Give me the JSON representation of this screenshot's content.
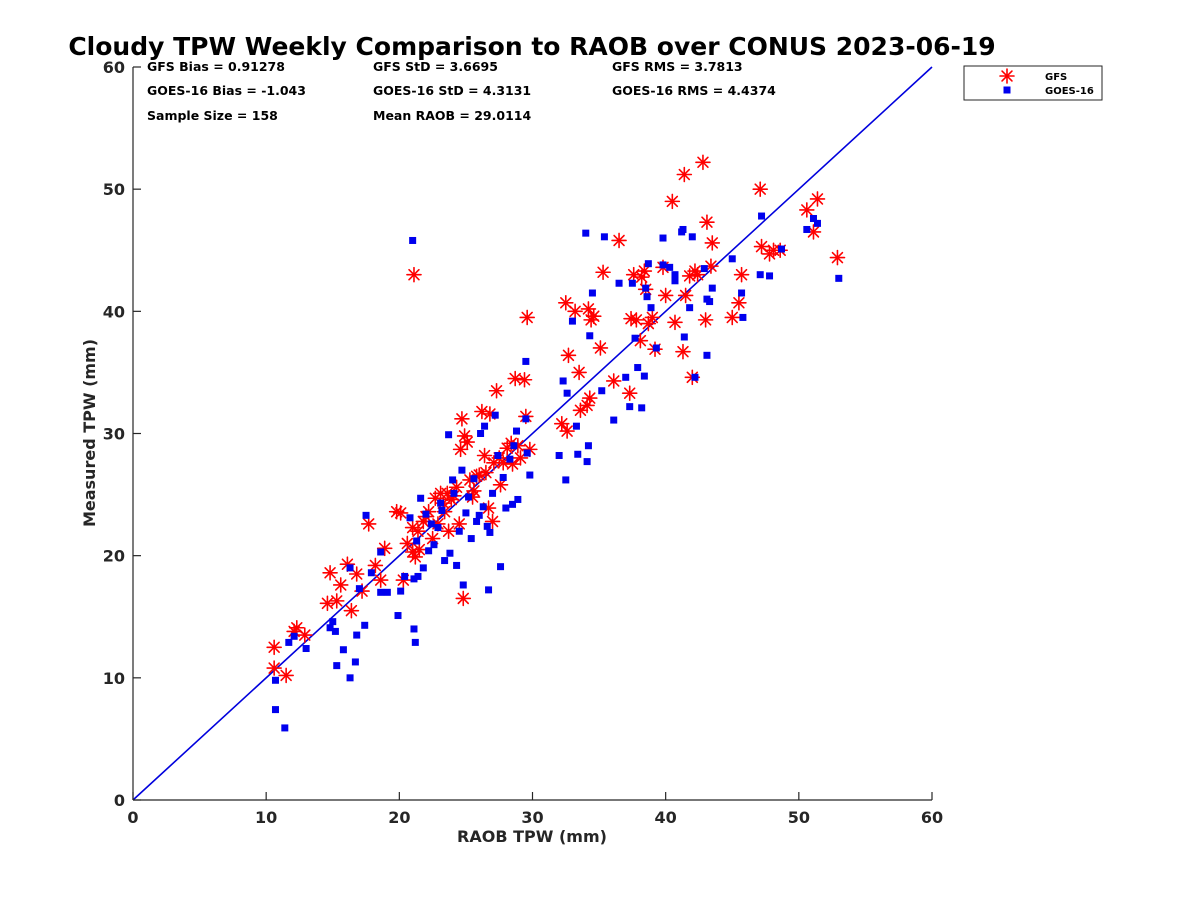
{
  "chart_data": {
    "type": "scatter",
    "title": "Cloudy TPW Weekly Comparison to RAOB over CONUS 2023-06-19",
    "xlabel": "RAOB TPW (mm)",
    "ylabel": "Measured TPW (mm)",
    "xlim": [
      0,
      60
    ],
    "ylim": [
      0,
      60
    ],
    "xticks": [
      0,
      10,
      20,
      30,
      40,
      50,
      60
    ],
    "yticks": [
      0,
      10,
      20,
      30,
      40,
      50,
      60
    ],
    "grid": false,
    "legend_position": "outside-top-right",
    "reference_line": {
      "from": [
        0,
        0
      ],
      "to": [
        60,
        60
      ],
      "color": "#0000dd"
    },
    "stats": [
      [
        "GFS Bias = 0.91278",
        "GFS StD = 3.6695",
        "GFS RMS = 3.7813"
      ],
      [
        "GOES-16 Bias = -1.043",
        "GOES-16 StD = 4.3131",
        "GOES-16 RMS = 4.4374"
      ],
      [
        "Sample Size = 158",
        "Mean RAOB = 29.0114",
        ""
      ]
    ],
    "series": [
      {
        "name": "GFS",
        "marker": "asterisk",
        "color": "#ff0000",
        "points": [
          [
            10.6,
            12.5
          ],
          [
            10.6,
            10.8
          ],
          [
            11.5,
            10.2
          ],
          [
            12.1,
            13.8
          ],
          [
            12.3,
            14.1
          ],
          [
            12.9,
            13.5
          ],
          [
            14.6,
            16.1
          ],
          [
            14.8,
            18.6
          ],
          [
            15.3,
            16.3
          ],
          [
            15.6,
            17.6
          ],
          [
            16.1,
            19.3
          ],
          [
            16.4,
            15.5
          ],
          [
            16.8,
            18.5
          ],
          [
            17.2,
            17.1
          ],
          [
            17.7,
            22.6
          ],
          [
            18.2,
            19.2
          ],
          [
            18.6,
            18.0
          ],
          [
            18.9,
            20.6
          ],
          [
            19.8,
            23.6
          ],
          [
            20.1,
            23.5
          ],
          [
            20.3,
            18.0
          ],
          [
            20.6,
            21.0
          ],
          [
            21.0,
            22.3
          ],
          [
            21.0,
            20.3
          ],
          [
            21.1,
            43.0
          ],
          [
            21.2,
            19.9
          ],
          [
            21.4,
            22.0
          ],
          [
            21.5,
            20.5
          ],
          [
            21.8,
            22.8
          ],
          [
            22.0,
            23.2
          ],
          [
            22.2,
            23.6
          ],
          [
            22.5,
            21.4
          ],
          [
            22.7,
            24.7
          ],
          [
            22.9,
            22.6
          ],
          [
            23.1,
            25.1
          ],
          [
            23.3,
            24.3
          ],
          [
            23.4,
            23.6
          ],
          [
            23.6,
            25.1
          ],
          [
            23.7,
            22.0
          ],
          [
            23.9,
            24.6
          ],
          [
            24.1,
            24.9
          ],
          [
            24.3,
            25.6
          ],
          [
            24.5,
            22.6
          ],
          [
            24.6,
            28.7
          ],
          [
            24.7,
            31.2
          ],
          [
            24.8,
            16.5
          ],
          [
            24.9,
            29.8
          ],
          [
            25.1,
            29.3
          ],
          [
            25.3,
            26.2
          ],
          [
            25.5,
            24.8
          ],
          [
            25.6,
            25.3
          ],
          [
            25.8,
            26.5
          ],
          [
            26.0,
            26.6
          ],
          [
            26.2,
            31.8
          ],
          [
            26.4,
            28.2
          ],
          [
            26.5,
            26.8
          ],
          [
            26.7,
            23.9
          ],
          [
            26.8,
            31.6
          ],
          [
            27.0,
            22.8
          ],
          [
            27.1,
            27.6
          ],
          [
            27.3,
            33.5
          ],
          [
            27.5,
            28.0
          ],
          [
            27.6,
            25.8
          ],
          [
            27.8,
            27.6
          ],
          [
            28.1,
            28.8
          ],
          [
            28.4,
            29.2
          ],
          [
            28.5,
            27.5
          ],
          [
            28.7,
            34.5
          ],
          [
            28.9,
            29.0
          ],
          [
            29.1,
            28.0
          ],
          [
            29.4,
            34.4
          ],
          [
            29.5,
            31.4
          ],
          [
            29.6,
            39.5
          ],
          [
            29.8,
            28.7
          ],
          [
            32.2,
            30.8
          ],
          [
            32.5,
            40.7
          ],
          [
            32.6,
            30.2
          ],
          [
            32.7,
            36.4
          ],
          [
            33.2,
            40.0
          ],
          [
            33.5,
            35.0
          ],
          [
            33.6,
            31.9
          ],
          [
            34.1,
            32.3
          ],
          [
            34.2,
            40.2
          ],
          [
            34.3,
            32.9
          ],
          [
            34.4,
            39.3
          ],
          [
            34.6,
            39.6
          ],
          [
            35.1,
            37.0
          ],
          [
            35.3,
            43.2
          ],
          [
            36.1,
            34.3
          ],
          [
            36.5,
            45.8
          ],
          [
            37.3,
            33.3
          ],
          [
            37.4,
            39.4
          ],
          [
            37.6,
            43.0
          ],
          [
            37.8,
            39.3
          ],
          [
            38.1,
            37.6
          ],
          [
            38.2,
            42.8
          ],
          [
            38.4,
            43.3
          ],
          [
            38.5,
            41.8
          ],
          [
            38.7,
            39.0
          ],
          [
            39.0,
            39.5
          ],
          [
            39.2,
            36.9
          ],
          [
            39.8,
            43.6
          ],
          [
            40.0,
            41.3
          ],
          [
            40.5,
            49.0
          ],
          [
            40.7,
            39.1
          ],
          [
            41.3,
            36.7
          ],
          [
            41.4,
            51.2
          ],
          [
            41.5,
            41.3
          ],
          [
            41.8,
            42.9
          ],
          [
            42.0,
            34.6
          ],
          [
            42.2,
            43.3
          ],
          [
            42.4,
            43.0
          ],
          [
            42.8,
            52.2
          ],
          [
            43.0,
            39.3
          ],
          [
            43.1,
            47.3
          ],
          [
            43.4,
            43.7
          ],
          [
            43.5,
            45.6
          ],
          [
            45.0,
            39.5
          ],
          [
            45.5,
            40.7
          ],
          [
            45.7,
            43.0
          ],
          [
            47.1,
            50.0
          ],
          [
            47.2,
            45.3
          ],
          [
            47.8,
            44.7
          ],
          [
            48.1,
            45.0
          ],
          [
            48.6,
            45.0
          ],
          [
            50.6,
            48.3
          ],
          [
            51.1,
            46.5
          ],
          [
            51.4,
            49.2
          ],
          [
            52.9,
            44.4
          ]
        ]
      },
      {
        "name": "GOES-16",
        "marker": "square",
        "color": "#0000ee",
        "points": [
          [
            10.7,
            9.8
          ],
          [
            10.7,
            7.4
          ],
          [
            11.4,
            5.9
          ],
          [
            11.7,
            12.9
          ],
          [
            12.1,
            13.4
          ],
          [
            13.0,
            12.4
          ],
          [
            14.8,
            14.1
          ],
          [
            15.0,
            14.6
          ],
          [
            15.2,
            13.8
          ],
          [
            15.3,
            11.0
          ],
          [
            15.8,
            12.3
          ],
          [
            16.3,
            10.0
          ],
          [
            16.3,
            19.0
          ],
          [
            16.7,
            11.3
          ],
          [
            16.8,
            13.5
          ],
          [
            17.0,
            17.3
          ],
          [
            17.4,
            14.3
          ],
          [
            17.5,
            23.3
          ],
          [
            17.9,
            18.6
          ],
          [
            18.6,
            20.3
          ],
          [
            18.6,
            17.0
          ],
          [
            19.1,
            17.0
          ],
          [
            19.9,
            15.1
          ],
          [
            20.1,
            17.1
          ],
          [
            20.4,
            18.3
          ],
          [
            20.8,
            23.1
          ],
          [
            21.0,
            45.8
          ],
          [
            21.1,
            14.0
          ],
          [
            21.1,
            18.1
          ],
          [
            21.2,
            12.9
          ],
          [
            21.3,
            21.2
          ],
          [
            21.4,
            18.3
          ],
          [
            21.6,
            24.7
          ],
          [
            21.8,
            19.0
          ],
          [
            22.0,
            23.4
          ],
          [
            22.2,
            20.4
          ],
          [
            22.4,
            22.6
          ],
          [
            22.6,
            20.9
          ],
          [
            22.9,
            22.3
          ],
          [
            23.1,
            24.3
          ],
          [
            23.2,
            23.7
          ],
          [
            23.4,
            19.6
          ],
          [
            23.7,
            29.9
          ],
          [
            23.8,
            20.2
          ],
          [
            24.0,
            26.2
          ],
          [
            24.1,
            25.1
          ],
          [
            24.3,
            19.2
          ],
          [
            24.5,
            22.0
          ],
          [
            24.7,
            27.0
          ],
          [
            24.8,
            17.6
          ],
          [
            25.0,
            23.5
          ],
          [
            25.2,
            24.8
          ],
          [
            25.4,
            21.4
          ],
          [
            25.6,
            26.3
          ],
          [
            25.8,
            22.8
          ],
          [
            26.0,
            23.3
          ],
          [
            26.1,
            30.0
          ],
          [
            26.3,
            24.0
          ],
          [
            26.4,
            30.6
          ],
          [
            26.6,
            22.4
          ],
          [
            26.7,
            17.2
          ],
          [
            26.8,
            21.9
          ],
          [
            27.0,
            25.1
          ],
          [
            27.2,
            31.5
          ],
          [
            27.4,
            28.2
          ],
          [
            27.6,
            19.1
          ],
          [
            27.8,
            26.4
          ],
          [
            28.0,
            23.9
          ],
          [
            28.3,
            27.9
          ],
          [
            28.5,
            24.2
          ],
          [
            28.6,
            29.0
          ],
          [
            28.8,
            30.2
          ],
          [
            28.9,
            24.6
          ],
          [
            29.5,
            35.9
          ],
          [
            29.5,
            31.2
          ],
          [
            29.6,
            28.4
          ],
          [
            29.8,
            26.6
          ],
          [
            32.0,
            28.2
          ],
          [
            32.3,
            34.3
          ],
          [
            32.5,
            26.2
          ],
          [
            32.6,
            33.3
          ],
          [
            33.0,
            39.2
          ],
          [
            33.3,
            30.6
          ],
          [
            33.4,
            28.3
          ],
          [
            34.0,
            46.4
          ],
          [
            34.1,
            27.7
          ],
          [
            34.2,
            29.0
          ],
          [
            34.3,
            38.0
          ],
          [
            34.5,
            41.5
          ],
          [
            35.2,
            33.5
          ],
          [
            35.4,
            46.1
          ],
          [
            36.1,
            31.1
          ],
          [
            36.5,
            42.3
          ],
          [
            37.0,
            34.6
          ],
          [
            37.3,
            32.2
          ],
          [
            37.5,
            42.3
          ],
          [
            37.7,
            37.8
          ],
          [
            37.9,
            35.4
          ],
          [
            38.2,
            32.1
          ],
          [
            38.4,
            34.7
          ],
          [
            38.5,
            41.9
          ],
          [
            38.6,
            41.2
          ],
          [
            38.7,
            43.9
          ],
          [
            38.9,
            40.3
          ],
          [
            39.3,
            37.0
          ],
          [
            39.8,
            43.8
          ],
          [
            39.8,
            46.0
          ],
          [
            40.3,
            43.6
          ],
          [
            40.7,
            43.0
          ],
          [
            40.7,
            42.5
          ],
          [
            41.2,
            46.5
          ],
          [
            41.3,
            46.7
          ],
          [
            41.4,
            37.9
          ],
          [
            41.8,
            40.3
          ],
          [
            42.0,
            46.1
          ],
          [
            42.2,
            34.6
          ],
          [
            42.9,
            43.5
          ],
          [
            43.1,
            36.4
          ],
          [
            43.1,
            41.0
          ],
          [
            43.3,
            40.8
          ],
          [
            43.5,
            41.9
          ],
          [
            45.0,
            44.3
          ],
          [
            45.7,
            41.5
          ],
          [
            45.8,
            39.5
          ],
          [
            47.1,
            43.0
          ],
          [
            47.2,
            47.8
          ],
          [
            47.8,
            42.9
          ],
          [
            48.7,
            45.1
          ],
          [
            50.6,
            46.7
          ],
          [
            51.1,
            47.6
          ],
          [
            51.4,
            47.2
          ],
          [
            53.0,
            42.7
          ]
        ]
      }
    ]
  }
}
